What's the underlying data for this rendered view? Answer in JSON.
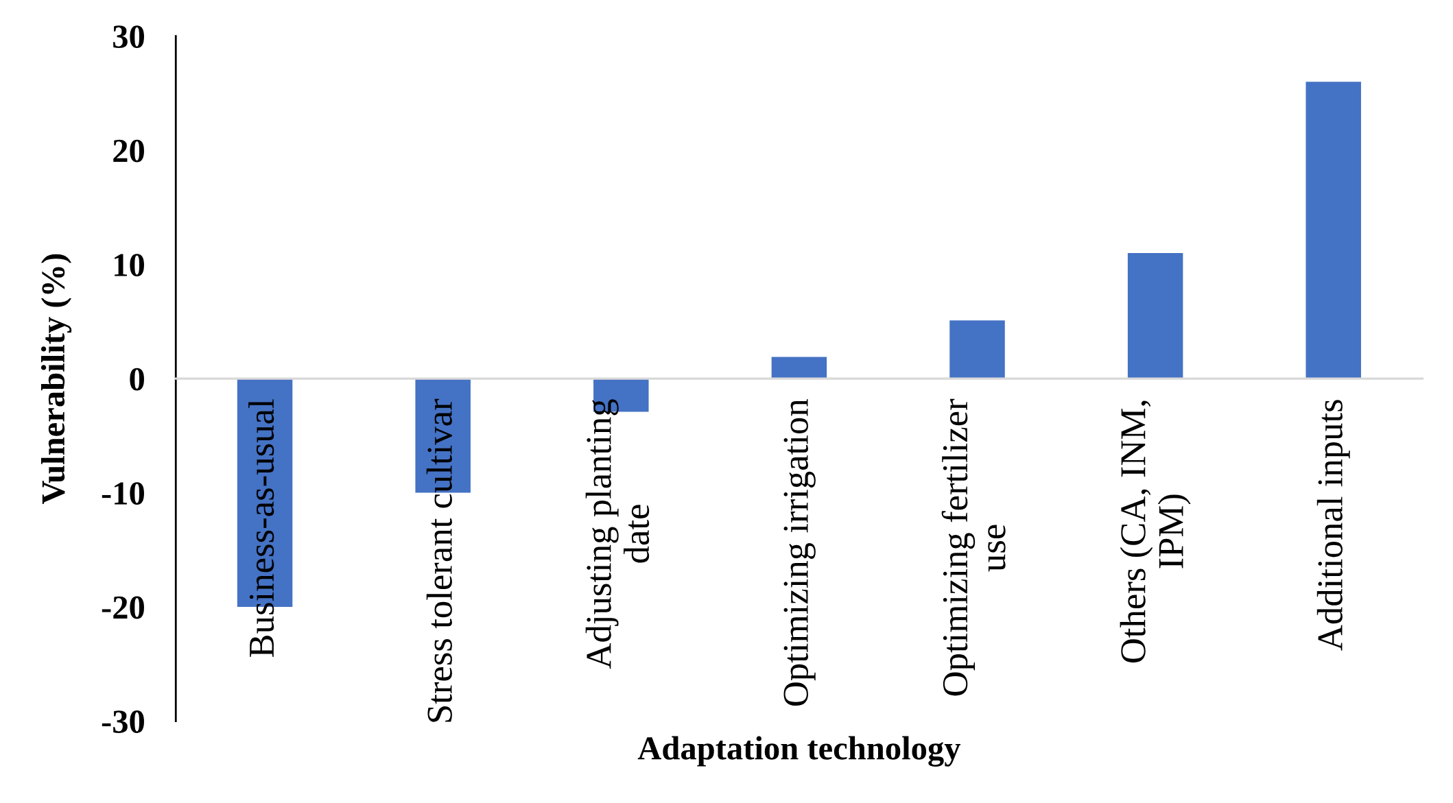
{
  "chart_data": {
    "type": "bar",
    "xlabel": "Adaptation technology",
    "ylabel": "Vulnerability (%)",
    "categories": [
      "Business-as-usual",
      "Stress tolerant cultivar",
      "Adjusting planting\ndate",
      "Optimizing irrigation",
      "Optimizing fertilizer\nuse",
      "Others (CA, INM,\nIPM)",
      "Additional inputs"
    ],
    "values": [
      -20,
      -10,
      -2.9,
      1.9,
      5.1,
      11,
      26
    ],
    "color": "#4472c4",
    "ylim": [
      -30,
      30
    ],
    "yticks": [
      -30,
      -20,
      -10,
      0,
      10,
      20,
      30
    ],
    "grid": false
  }
}
